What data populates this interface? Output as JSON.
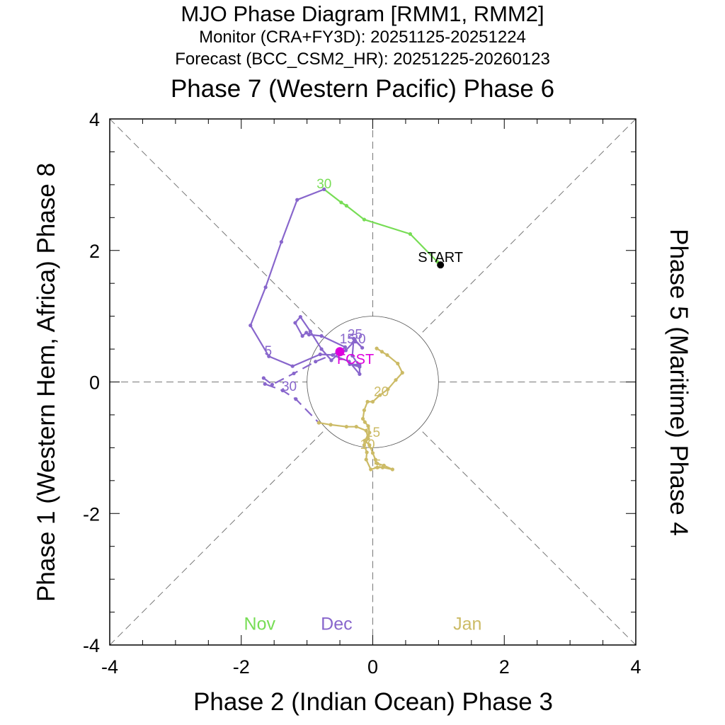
{
  "chart_data": {
    "type": "line",
    "title": "MJO Phase Diagram [RMM1, RMM2]",
    "subtitle_monitor": "Monitor (CRA+FY3D): 20251125-20251224",
    "subtitle_forecast": "Forecast (BCC_CSM2_HR): 20251225-20260123",
    "top_label": "Phase 7 (Western Pacific) Phase 6",
    "xlabel": "Phase 2 (Indian Ocean) Phase 3",
    "ylabel_left": "Phase 1 (Western Hem, Africa) Phase 8",
    "ylabel_right": "Phase 5 (Maritime) Phase 4",
    "xlim": [
      -4,
      4
    ],
    "ylim": [
      -4,
      4
    ],
    "x_ticks": [
      "-4",
      "-2",
      "0",
      "2",
      "4"
    ],
    "y_ticks": [
      "4",
      "2",
      "0",
      "-2",
      "-4"
    ],
    "unit_circle_radius": 1,
    "legend": [
      {
        "label": "Nov",
        "color": "#77dd55"
      },
      {
        "label": "Dec",
        "color": "#8866cc"
      },
      {
        "label": "Jan",
        "color": "#ccbb66"
      }
    ],
    "start_point": {
      "label": "START",
      "x": 1.03,
      "y": 1.78
    },
    "forecast_start_point": {
      "label": "FCST",
      "x": -0.5,
      "y": 0.46,
      "color": "#dd00dd"
    },
    "series": [
      {
        "name": "Nov (monitor)",
        "color": "#77dd55",
        "dashed": false,
        "x": [
          1.03,
          0.98,
          0.57,
          -0.13,
          -0.4,
          -0.48,
          -0.74
        ],
        "y": [
          1.78,
          1.83,
          2.25,
          2.47,
          2.68,
          2.73,
          2.93
        ]
      },
      {
        "name": "Dec (monitor)",
        "color": "#8866cc",
        "dashed": false,
        "x": [
          -0.74,
          -1.15,
          -1.39,
          -1.63,
          -1.86,
          -1.58,
          -1.22,
          -0.8,
          -0.61,
          -0.36,
          -0.2,
          -0.2,
          -0.35,
          -0.2,
          -0.31,
          -0.29,
          -0.16,
          -0.27,
          -0.41,
          -0.5,
          -0.63,
          -0.78,
          -0.95,
          -1.1,
          -1.18,
          -1.07,
          -1.01,
          -0.97,
          -0.78,
          -0.42,
          -0.5
        ],
        "y": [
          2.93,
          2.77,
          2.13,
          1.44,
          0.86,
          0.39,
          0.24,
          0.42,
          0.41,
          0.31,
          0.12,
          0.26,
          0.27,
          0.23,
          0.4,
          0.66,
          0.52,
          0.63,
          0.48,
          0.45,
          0.33,
          0.5,
          0.77,
          0.99,
          0.9,
          0.7,
          0.75,
          0.72,
          0.7,
          0.53,
          0.46
        ]
      },
      {
        "name": "Dec (forecast)",
        "color": "#8866cc",
        "dashed": true,
        "x": [
          -0.5,
          -0.87,
          -1.2,
          -1.53,
          -1.66,
          -1.64,
          -1.37,
          -1.17,
          -0.82
        ],
        "y": [
          0.46,
          0.31,
          0.13,
          -0.04,
          0.06,
          -0.03,
          -0.13,
          -0.26,
          -0.62
        ]
      },
      {
        "name": "Jan (forecast)",
        "color": "#ccbb66",
        "dashed": false,
        "x": [
          -0.82,
          -0.64,
          -0.4,
          -0.25,
          -0.1,
          -0.07,
          -0.13,
          -0.09,
          -0.1,
          -0.03,
          0.07,
          0.15,
          0.3,
          0.17,
          0.07,
          0.04,
          0.0,
          -0.05,
          -0.12,
          -0.05,
          -0.07,
          -0.12,
          -0.15,
          -0.13,
          -0.08,
          0.0,
          0.11,
          0.23,
          0.35,
          0.45,
          0.38,
          0.22,
          0.14,
          0.06
        ],
        "y": [
          -0.62,
          -0.65,
          -0.68,
          -0.68,
          -0.74,
          -0.86,
          -0.96,
          -1.07,
          -1.18,
          -1.33,
          -1.3,
          -1.3,
          -1.33,
          -1.27,
          -1.24,
          -1.18,
          -1.08,
          -0.96,
          -0.89,
          -0.77,
          -0.67,
          -0.61,
          -0.56,
          -0.43,
          -0.3,
          -0.3,
          -0.2,
          -0.11,
          0.03,
          0.14,
          0.28,
          0.41,
          0.46,
          0.51
        ]
      }
    ],
    "day_labels": [
      {
        "text": "30",
        "x": -0.74,
        "y": 3.02,
        "color": "#77dd55"
      },
      {
        "text": "5",
        "x": -1.59,
        "y": 0.48,
        "color": "#8866cc"
      },
      {
        "text": "15",
        "x": -0.39,
        "y": 0.66,
        "color": "#8866cc"
      },
      {
        "text": "25",
        "x": -0.27,
        "y": 0.73,
        "color": "#8866cc"
      },
      {
        "text": "20",
        "x": -0.22,
        "y": 0.66,
        "color": "#8866cc"
      },
      {
        "text": "30",
        "x": -1.27,
        "y": -0.06,
        "color": "#8866cc"
      },
      {
        "text": "5",
        "x": 0.07,
        "y": -1.25,
        "color": "#ccbb66"
      },
      {
        "text": "10",
        "x": -0.08,
        "y": -0.94,
        "color": "#ccbb66"
      },
      {
        "text": "15",
        "x": 0.0,
        "y": -0.76,
        "color": "#ccbb66"
      },
      {
        "text": "20",
        "x": 0.13,
        "y": -0.14,
        "color": "#ccbb66"
      }
    ]
  }
}
